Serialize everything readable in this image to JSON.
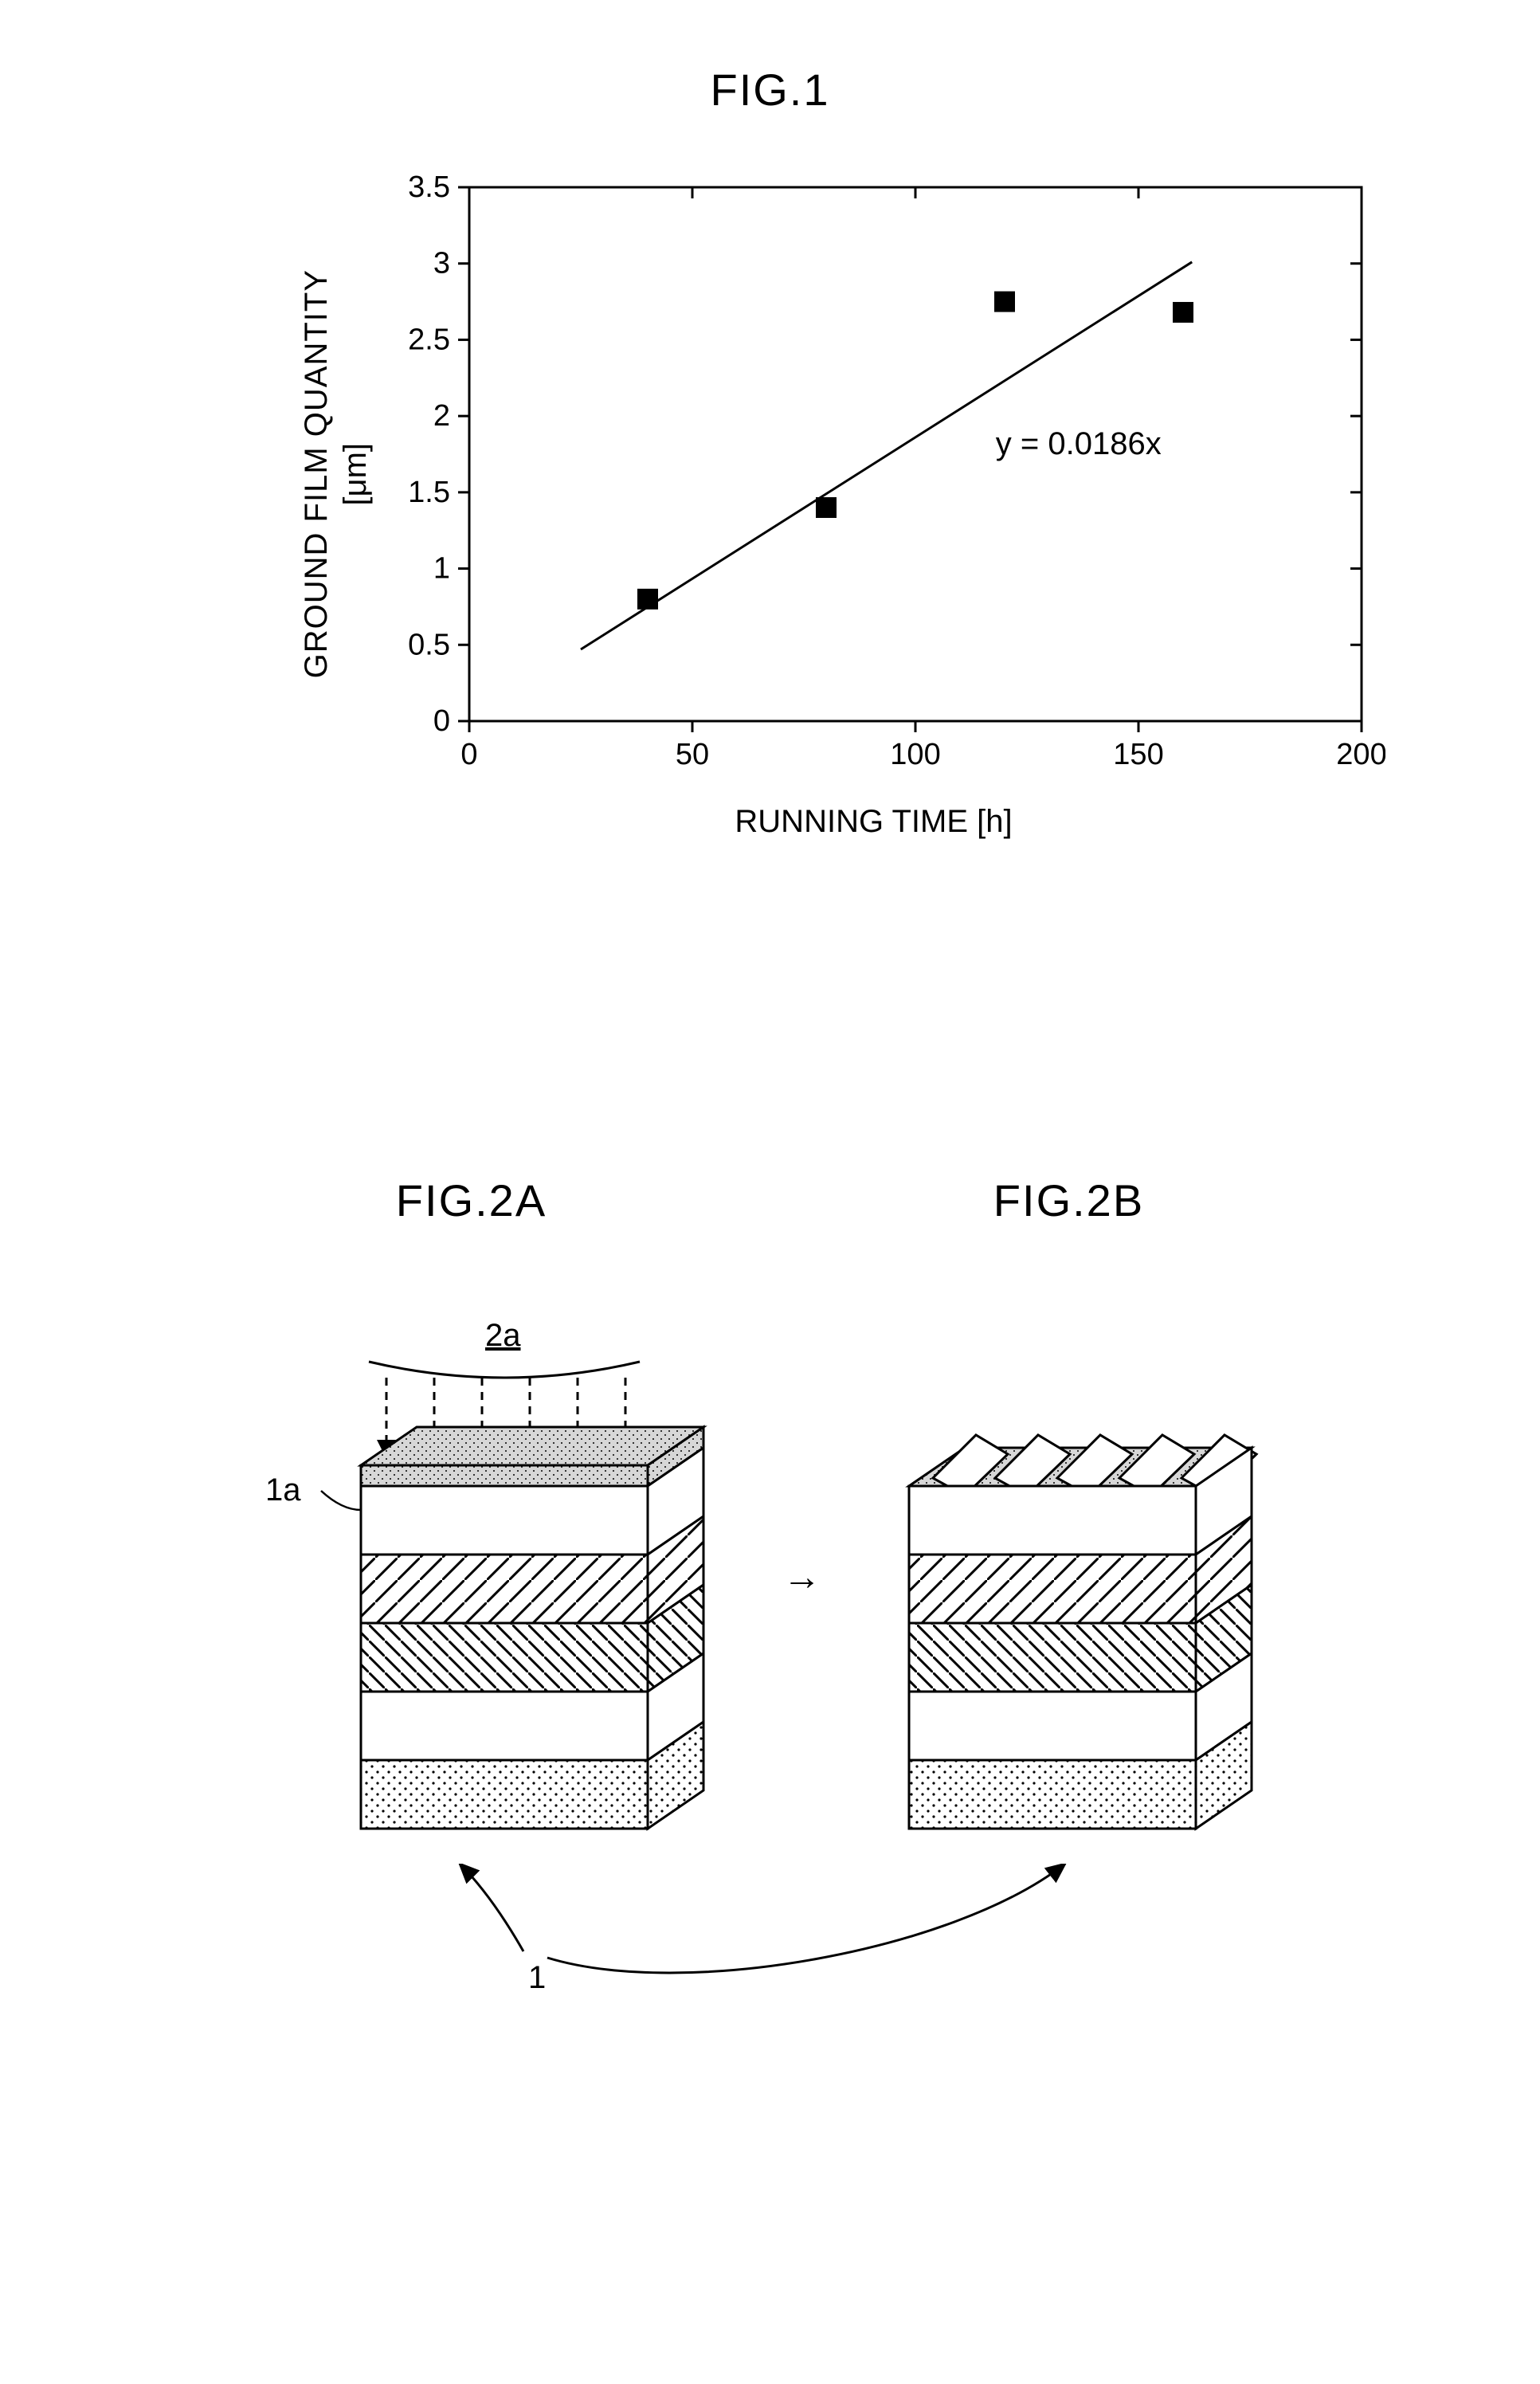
{
  "fig1": {
    "title": "FIG.1",
    "ylabel_main": "GROUND FILM QUANTITY",
    "ylabel_unit": "[μm]",
    "xlabel": "RUNNING TIME [h]",
    "equation": "y = 0.0186x",
    "xlim": [
      0,
      200
    ],
    "ylim": [
      0,
      3.5
    ],
    "xticks": [
      0,
      50,
      100,
      150,
      200
    ],
    "yticks": [
      0,
      0.5,
      1,
      1.5,
      2,
      2.5,
      3,
      3.5
    ],
    "ytick_labels": [
      "0",
      "0.5",
      "1",
      "1.5",
      "2",
      "2.5",
      "3",
      "3.5"
    ],
    "points": [
      {
        "x": 40,
        "y": 0.8
      },
      {
        "x": 80,
        "y": 1.4
      },
      {
        "x": 120,
        "y": 2.75
      },
      {
        "x": 160,
        "y": 2.68
      }
    ],
    "line": {
      "x1": 25,
      "y1": 0.47,
      "x2": 162,
      "y2": 3.01
    },
    "marker_size": 26,
    "axis_color": "#000000",
    "marker_color": "#000000",
    "text_fontsize": 40,
    "tick_fontsize": 38
  },
  "fig2": {
    "titleA": "FIG.2A",
    "titleB": "FIG.2B",
    "label_2a": "2a",
    "label_1a": "1a",
    "label_1": "1",
    "arrow": "→",
    "colors": {
      "outline": "#000000",
      "dots_fill": "#c9c9c9",
      "hatch": "#000000",
      "top_gray": "#b9b9b9"
    }
  }
}
